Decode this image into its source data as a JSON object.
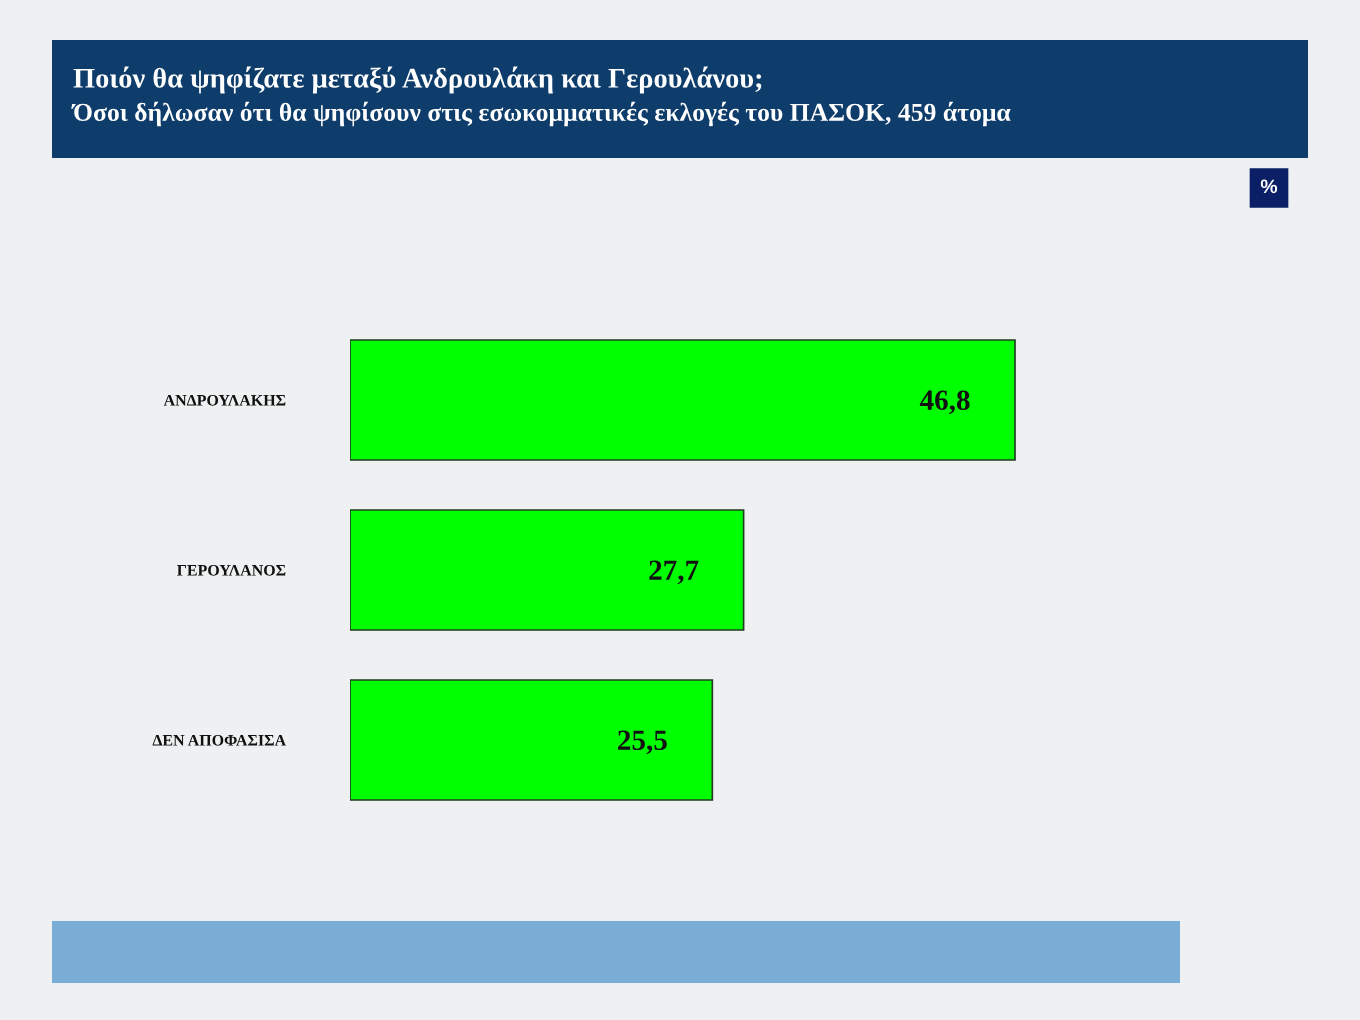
{
  "chart_data": {
    "type": "bar",
    "orientation": "horizontal",
    "title": "Ποιόν θα ψηφίζατε μεταξύ Ανδρουλάκη και Γερουλάνου;",
    "subtitle": "Όσοι δήλωσαν ότι θα ψηφίσουν στις εσωκομματικές εκλογές του ΠΑΣΟΚ, 459 άτομα",
    "categories": [
      "ΑΝΔΡΟΥΛΑΚΗΣ",
      "ΓΕΡΟΥΛΑΝΟΣ",
      "ΔΕΝ ΑΠΟΦΑΣΙΣΑ"
    ],
    "values": [
      46.8,
      27.7,
      25.5
    ],
    "value_labels": [
      "46,8",
      "27,7",
      "25,5"
    ],
    "color": "#00ff00",
    "annotations": [
      "%"
    ],
    "tick_labels": "y"
  }
}
